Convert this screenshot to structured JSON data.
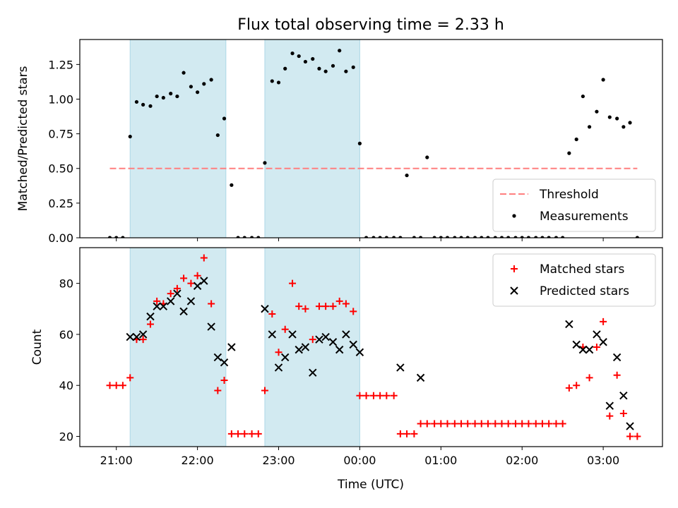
{
  "figure": {
    "title": "Flux total observing time = 2.33 h",
    "xlabel": "Time (UTC)"
  },
  "chart_data": [
    {
      "type": "scatter",
      "name": "ratio-panel",
      "ylabel": "Matched/Predicted stars",
      "ylim": [
        0,
        1.43
      ],
      "yticks": [
        0.0,
        0.25,
        0.5,
        0.75,
        1.0,
        1.25
      ],
      "ytick_labels": [
        "0.00",
        "0.25",
        "0.50",
        "0.75",
        "1.00",
        "1.25"
      ],
      "xlim": [
        20.55,
        27.73
      ],
      "shaded_intervals": [
        [
          21.17,
          22.35
        ],
        [
          22.83,
          24.0
        ]
      ],
      "shade_color": "#add8e6",
      "threshold": {
        "name": "Threshold",
        "value": 0.5,
        "x_range": [
          20.92,
          27.42
        ],
        "color": "#ff7f7f"
      },
      "legend_position": "lower-right",
      "series": [
        {
          "name": "Measurements",
          "color": "#000000",
          "x": [
            20.92,
            21.0,
            21.08,
            21.17,
            21.25,
            21.33,
            21.42,
            21.5,
            21.58,
            21.67,
            21.75,
            21.83,
            21.92,
            22.0,
            22.08,
            22.17,
            22.25,
            22.33,
            22.42,
            22.5,
            22.58,
            22.67,
            22.75,
            22.83,
            22.92,
            23.0,
            23.08,
            23.17,
            23.25,
            23.33,
            23.42,
            23.5,
            23.58,
            23.67,
            23.75,
            23.83,
            23.92,
            24.0,
            24.08,
            24.17,
            24.25,
            24.33,
            24.42,
            24.5,
            24.58,
            24.67,
            24.75,
            24.83,
            24.92,
            25.0,
            25.08,
            25.17,
            25.25,
            25.33,
            25.42,
            25.5,
            25.58,
            25.67,
            25.75,
            25.83,
            25.92,
            26.0,
            26.08,
            26.17,
            26.25,
            26.33,
            26.42,
            26.5,
            26.58,
            26.67,
            26.75,
            26.83,
            26.92,
            27.0,
            27.08,
            27.17,
            27.25,
            27.33,
            27.42
          ],
          "y": [
            0,
            0,
            0,
            0.73,
            0.98,
            0.96,
            0.95,
            1.02,
            1.01,
            1.04,
            1.02,
            1.19,
            1.09,
            1.05,
            1.11,
            1.14,
            0.74,
            0.86,
            0.38,
            0,
            0,
            0,
            0,
            0.54,
            1.13,
            1.12,
            1.22,
            1.33,
            1.31,
            1.27,
            1.29,
            1.22,
            1.2,
            1.24,
            1.35,
            1.2,
            1.23,
            0.68,
            0,
            0,
            0,
            0,
            0,
            0,
            0.45,
            0,
            0,
            0.58,
            0,
            0,
            0,
            0,
            0,
            0,
            0,
            0,
            0,
            0,
            0,
            0,
            0,
            0,
            0,
            0,
            0,
            0,
            0,
            0,
            0.61,
            0.71,
            1.02,
            0.8,
            0.91,
            1.14,
            0.87,
            0.86,
            0.8,
            0.83,
            0
          ]
        }
      ]
    },
    {
      "type": "scatter",
      "name": "count-panel",
      "ylabel": "Count",
      "ylim": [
        16,
        94
      ],
      "yticks": [
        20,
        40,
        60,
        80
      ],
      "ytick_labels": [
        "20",
        "40",
        "60",
        "80"
      ],
      "xlim": [
        20.55,
        27.73
      ],
      "xticks": [
        21,
        22,
        23,
        24,
        25,
        26,
        27
      ],
      "xtick_labels": [
        "21:00",
        "22:00",
        "23:00",
        "00:00",
        "01:00",
        "02:00",
        "03:00"
      ],
      "shaded_intervals": [
        [
          21.17,
          22.35
        ],
        [
          22.83,
          24.0
        ]
      ],
      "shade_color": "#add8e6",
      "legend_position": "upper-right",
      "series": [
        {
          "name": "Matched stars",
          "color": "#ff0000",
          "marker": "plus",
          "x": [
            20.92,
            21.0,
            21.08,
            21.17,
            21.25,
            21.33,
            21.42,
            21.5,
            21.58,
            21.67,
            21.75,
            21.83,
            21.92,
            22.0,
            22.08,
            22.17,
            22.25,
            22.33,
            22.42,
            22.5,
            22.58,
            22.67,
            22.75,
            22.83,
            22.92,
            23.0,
            23.08,
            23.17,
            23.25,
            23.33,
            23.42,
            23.5,
            23.58,
            23.67,
            23.75,
            23.83,
            23.92,
            24.0,
            24.08,
            24.17,
            24.25,
            24.33,
            24.42,
            24.5,
            24.58,
            24.67,
            24.75,
            24.83,
            24.92,
            25.0,
            25.08,
            25.17,
            25.25,
            25.33,
            25.42,
            25.5,
            25.58,
            25.67,
            25.75,
            25.83,
            25.92,
            26.0,
            26.08,
            26.17,
            26.25,
            26.33,
            26.42,
            26.5,
            26.58,
            26.67,
            26.75,
            26.83,
            26.92,
            27.0,
            27.08,
            27.17,
            27.25,
            27.33,
            27.42
          ],
          "y": [
            40,
            40,
            40,
            43,
            58,
            58,
            64,
            73,
            72,
            76,
            78,
            82,
            80,
            83,
            90,
            72,
            38,
            42,
            21,
            21,
            21,
            21,
            21,
            38,
            68,
            53,
            62,
            80,
            71,
            70,
            58,
            71,
            71,
            71,
            73,
            72,
            69,
            36,
            36,
            36,
            36,
            36,
            36,
            21,
            21,
            21,
            25,
            25,
            25,
            25,
            25,
            25,
            25,
            25,
            25,
            25,
            25,
            25,
            25,
            25,
            25,
            25,
            25,
            25,
            25,
            25,
            25,
            25,
            39,
            40,
            55,
            43,
            55,
            65,
            28,
            44,
            29,
            20,
            20
          ]
        },
        {
          "name": "Predicted stars",
          "color": "#000000",
          "marker": "x",
          "x": [
            21.17,
            21.25,
            21.33,
            21.42,
            21.5,
            21.58,
            21.67,
            21.75,
            21.83,
            21.92,
            22.0,
            22.08,
            22.17,
            22.25,
            22.33,
            22.42,
            22.83,
            22.92,
            23.0,
            23.08,
            23.17,
            23.25,
            23.33,
            23.42,
            23.5,
            23.58,
            23.67,
            23.75,
            23.83,
            23.92,
            24.0,
            24.5,
            24.75,
            26.58,
            26.67,
            26.75,
            26.83,
            26.92,
            27.0,
            27.08,
            27.17,
            27.25,
            27.33
          ],
          "y": [
            59,
            59,
            60,
            67,
            71,
            71,
            73,
            76,
            69,
            73,
            79,
            81,
            63,
            51,
            49,
            55,
            70,
            60,
            47,
            51,
            60,
            54,
            55,
            45,
            58,
            59,
            57,
            54,
            60,
            56,
            53,
            47,
            43,
            64,
            56,
            54,
            54,
            60,
            57,
            32,
            51,
            36,
            24
          ]
        }
      ]
    }
  ]
}
